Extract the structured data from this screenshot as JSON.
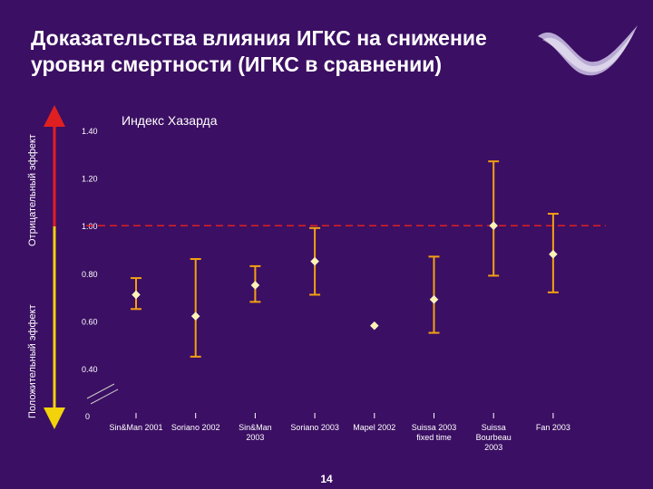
{
  "title_line1": "Доказательства влияния ИГКС на снижение",
  "title_line2": "уровня смертности (ИГКС в сравнении)",
  "axis_label_negative": "Отрицательный эффект",
  "axis_label_positive": "Положительный эффект",
  "page_number": "14",
  "colors": {
    "background": "#3b0f63",
    "marker": "#fff3b0",
    "error_bar": "#f3a012",
    "reference_line": "#e02020",
    "arrow_negative": "#e02020",
    "arrow_positive": "#f2d20a"
  },
  "chart_data": {
    "type": "scatter",
    "title": "Индекс Хазарда",
    "xlabel": "",
    "ylabel": "",
    "ylim": [
      0,
      1.4
    ],
    "y_ticks": [
      0.4,
      0.6,
      0.8,
      1.0,
      1.2,
      1.4
    ],
    "y_tick_labels": [
      "0.40",
      "0.60",
      "0.80",
      "1.00",
      "1.20",
      "1.40"
    ],
    "y_origin_label": "0",
    "axis_break": true,
    "reference_line": 1.0,
    "grid": false,
    "categories": [
      [
        "Sin&Man 2001"
      ],
      [
        "Soriano 2002"
      ],
      [
        "Sin&Man",
        "2003"
      ],
      [
        "Soriano 2003"
      ],
      [
        "Mapel 2002"
      ],
      [
        "Suissa 2003",
        "fixed time"
      ],
      [
        "Suissa",
        "Bourbeau",
        "2003"
      ],
      [
        "Fan 2003"
      ]
    ],
    "values": [
      0.71,
      0.62,
      0.75,
      0.85,
      0.58,
      0.69,
      1.0,
      0.88
    ],
    "ci_low": [
      0.65,
      0.45,
      0.68,
      0.71,
      null,
      0.55,
      0.79,
      0.72
    ],
    "ci_high": [
      0.78,
      0.86,
      0.83,
      0.99,
      null,
      0.87,
      1.27,
      1.05
    ]
  }
}
